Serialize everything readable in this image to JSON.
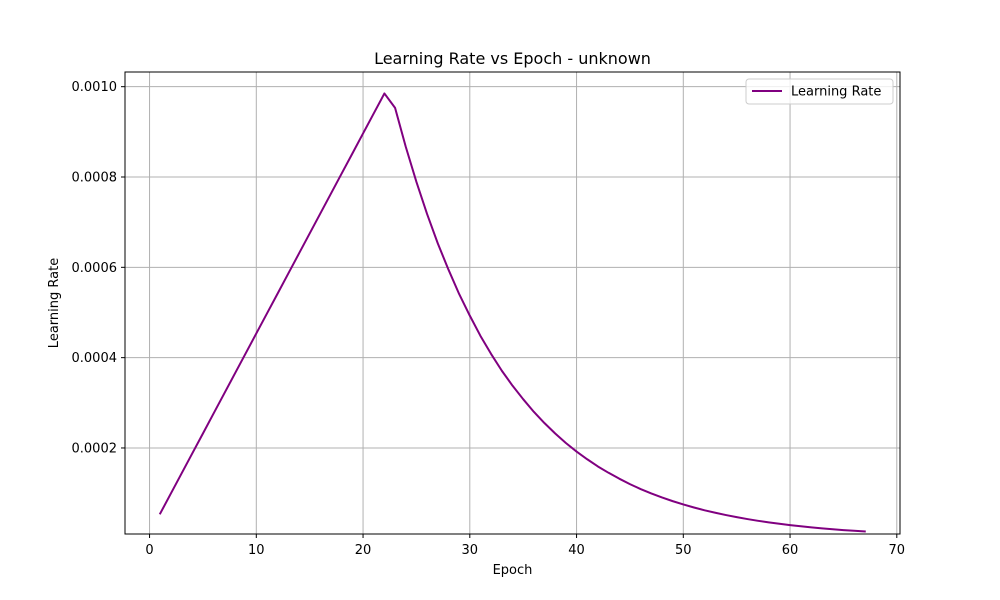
{
  "chart_data": {
    "type": "line",
    "title": "Learning Rate vs Epoch - unknown",
    "xlabel": "Epoch",
    "ylabel": "Learning Rate",
    "xlim": [
      -2.3,
      70.3
    ],
    "ylim": [
      9.5e-06,
      0.0010325
    ],
    "xticks": [
      0,
      10,
      20,
      30,
      40,
      50,
      60,
      70
    ],
    "xtick_labels": [
      "0",
      "10",
      "20",
      "30",
      "40",
      "50",
      "60",
      "70"
    ],
    "yticks": [
      0.0002,
      0.0004,
      0.0006,
      0.0008,
      0.001
    ],
    "ytick_labels": [
      "0.0002",
      "0.0004",
      "0.0006",
      "0.0008",
      "0.0010"
    ],
    "grid": true,
    "legend_position": "upper right",
    "series": [
      {
        "name": "Learning Rate",
        "color": "#800080",
        "x": [
          1,
          2,
          3,
          4,
          5,
          6,
          7,
          8,
          9,
          10,
          11,
          12,
          13,
          14,
          15,
          16,
          17,
          18,
          19,
          20,
          21,
          22,
          23,
          24,
          25,
          26,
          27,
          28,
          29,
          30,
          31,
          32,
          33,
          34,
          35,
          36,
          37,
          38,
          39,
          40,
          41,
          42,
          43,
          44,
          45,
          46,
          47,
          48,
          49,
          50,
          51,
          52,
          53,
          54,
          55,
          56,
          57,
          58,
          59,
          60,
          61,
          62,
          63,
          64,
          65,
          66,
          67
        ],
        "y": [
          5.5e-05,
          9.93e-05,
          0.0001436,
          0.0001879,
          0.0002321,
          0.0002764,
          0.0003207,
          0.000365,
          0.0004093,
          0.0004536,
          0.0004979,
          0.0005421,
          0.0005864,
          0.0006307,
          0.000675,
          0.0007193,
          0.0007636,
          0.0008079,
          0.0008521,
          0.0008964,
          0.0009407,
          0.000985,
          0.000953,
          0.000867,
          0.000789,
          0.000718,
          0.000653,
          0.000595,
          0.000541,
          0.000493,
          0.000448,
          0.000408,
          0.000371,
          0.000338,
          0.000308,
          0.00028,
          0.000255,
          0.000232,
          0.000211,
          0.000192,
          0.000175,
          0.000159,
          0.000145,
          0.000132,
          0.00012,
          0.000109,
          9.94e-05,
          9.05e-05,
          8.23e-05,
          7.49e-05,
          6.82e-05,
          6.2e-05,
          5.65e-05,
          5.14e-05,
          4.68e-05,
          4.26e-05,
          3.87e-05,
          3.53e-05,
          3.21e-05,
          2.92e-05,
          2.66e-05,
          2.42e-05,
          2.2e-05,
          2e-05,
          1.82e-05,
          1.66e-05,
          1.51e-05
        ]
      }
    ]
  }
}
